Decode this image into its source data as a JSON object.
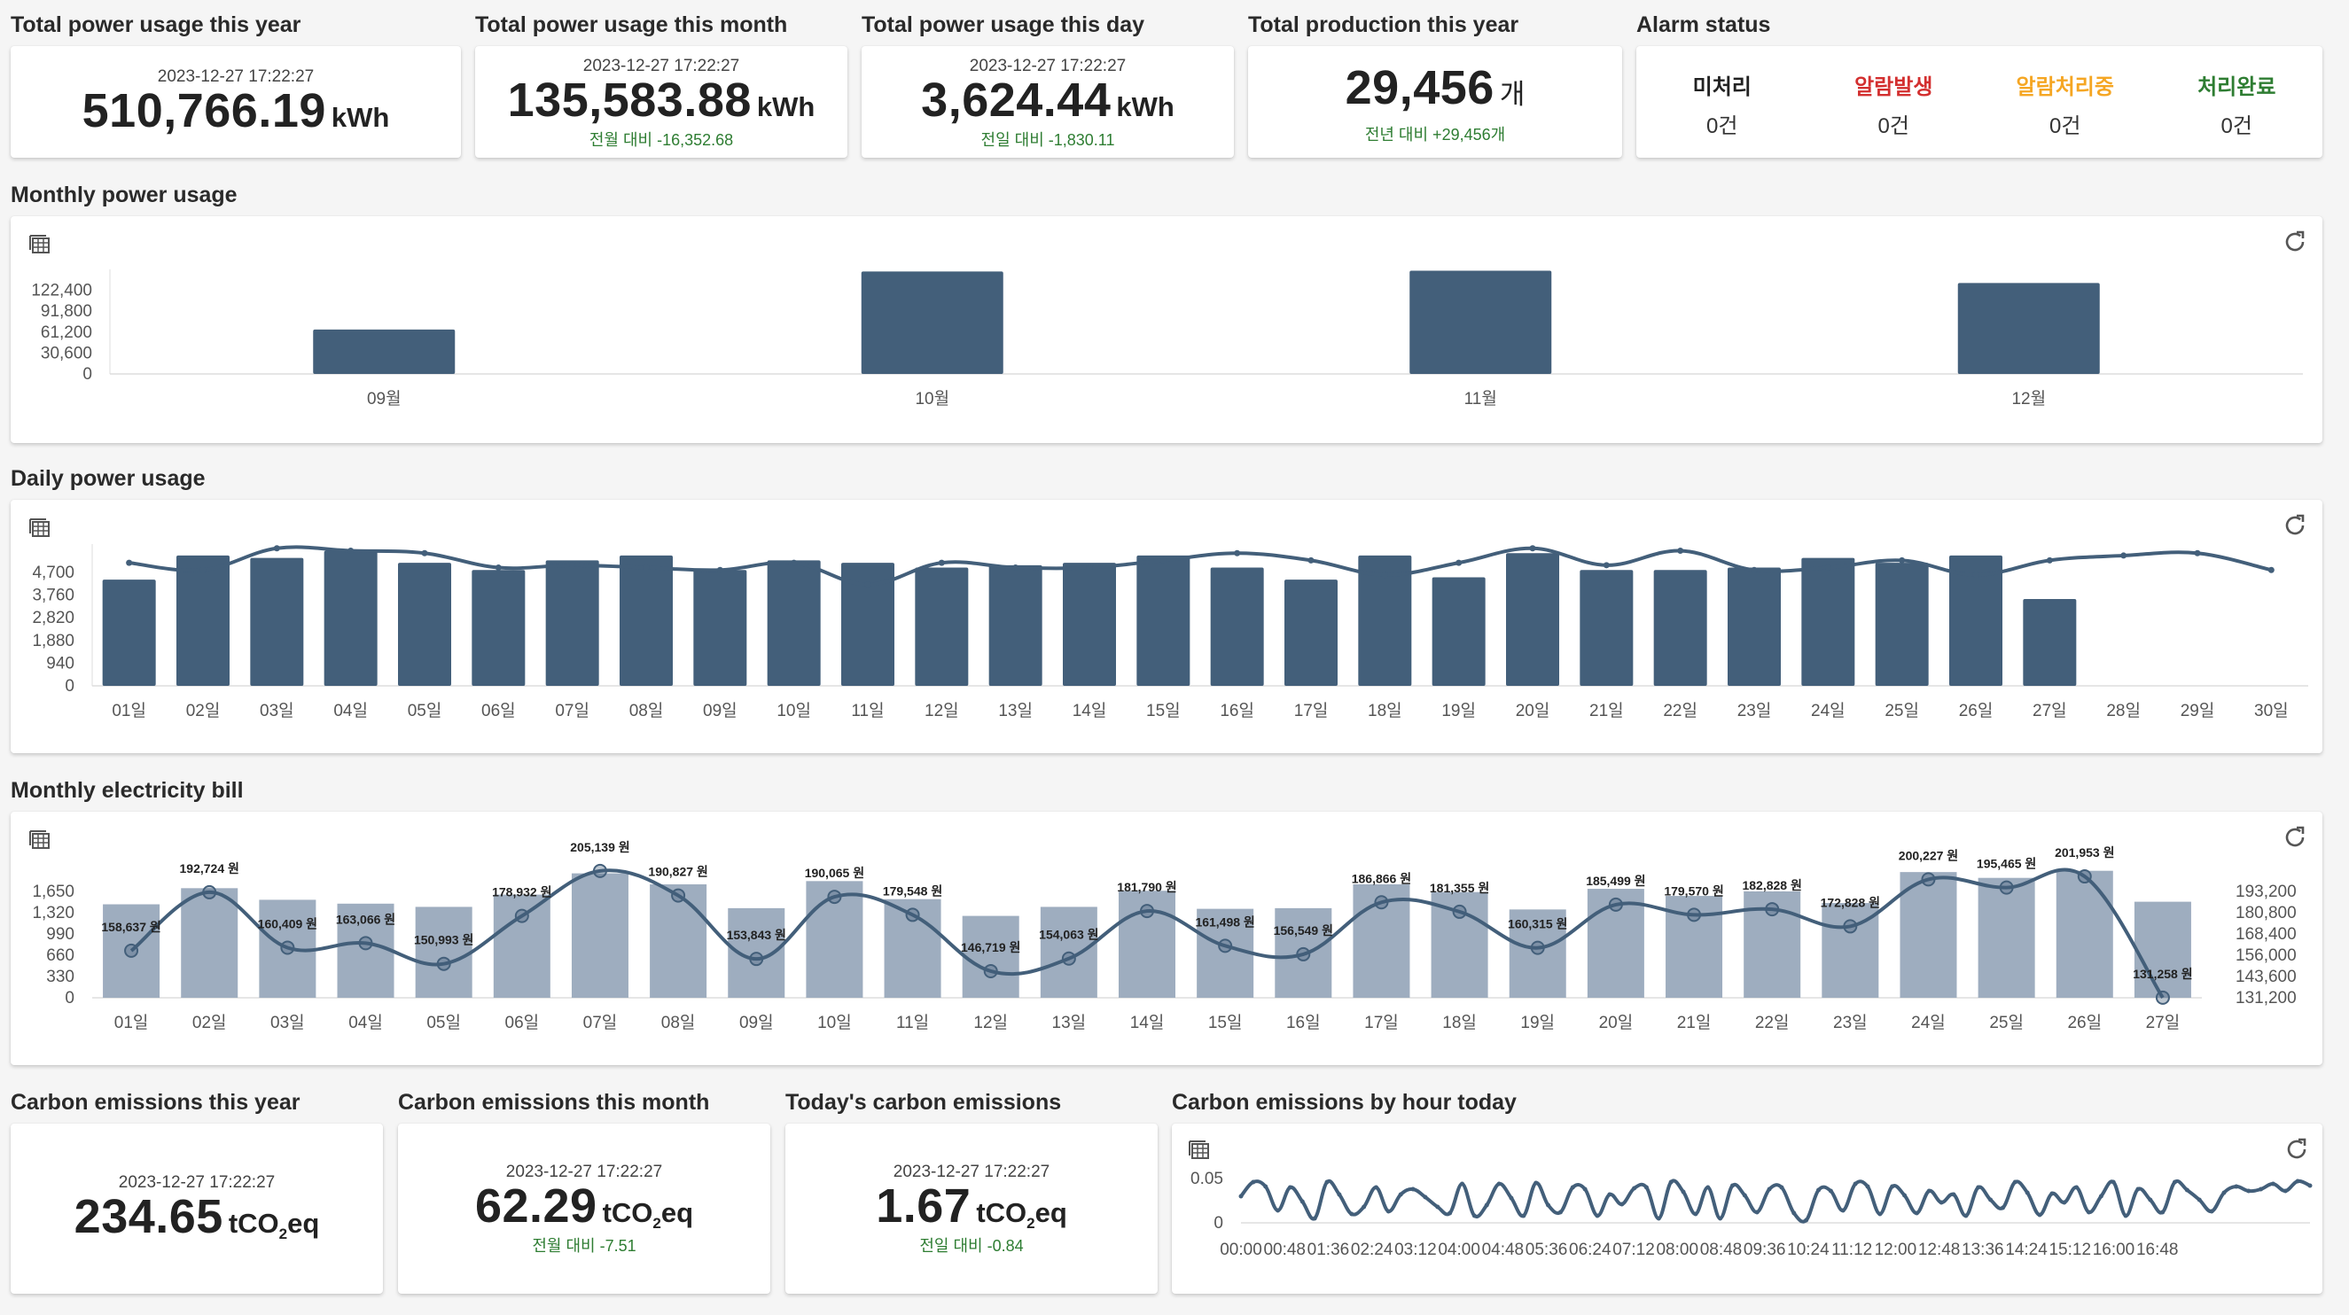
{
  "kpis": {
    "year": {
      "title": "Total power usage this year",
      "timestamp": "2023-12-27 17:22:27",
      "value": "510,766.19",
      "unit": "kWh"
    },
    "month": {
      "title": "Total power usage this month",
      "timestamp": "2023-12-27 17:22:27",
      "value": "135,583.88",
      "unit": "kWh",
      "diff": "전월 대비 -16,352.68"
    },
    "day": {
      "title": "Total power usage this day",
      "timestamp": "2023-12-27 17:22:27",
      "value": "3,624.44",
      "unit": "kWh",
      "diff": "전일 대비 -1,830.11"
    },
    "production": {
      "title": "Total production this year",
      "value": "29,456",
      "unit": "개",
      "diff": "전년 대비 +29,456개"
    }
  },
  "alarm": {
    "title": "Alarm status",
    "items": [
      {
        "label": "미처리",
        "count": "0건",
        "color": "#222222"
      },
      {
        "label": "알람발생",
        "count": "0건",
        "color": "#d32f2f"
      },
      {
        "label": "알람처리중",
        "count": "0건",
        "color": "#f5a623"
      },
      {
        "label": "처리완료",
        "count": "0건",
        "color": "#2e7d32"
      }
    ]
  },
  "monthly_usage": {
    "title": "Monthly power usage",
    "chart_data": {
      "type": "bar",
      "categories": [
        "09월",
        "10월",
        "11월",
        "12월"
      ],
      "values": [
        65000,
        150000,
        151000,
        133000
      ],
      "yticks": [
        "122,400",
        "91,800",
        "61,200",
        "30,600",
        "0"
      ],
      "ylim": [
        0,
        153000
      ],
      "color": "#435f7a"
    }
  },
  "daily_usage": {
    "title": "Daily power usage",
    "chart_data": {
      "type": "bar",
      "categories": [
        "01일",
        "02일",
        "03일",
        "04일",
        "05일",
        "06일",
        "07일",
        "08일",
        "09일",
        "10일",
        "11일",
        "12일",
        "13일",
        "14일",
        "15일",
        "16일",
        "17일",
        "18일",
        "19일",
        "20일",
        "21일",
        "22일",
        "23일",
        "24일",
        "25일",
        "26일",
        "27일",
        "28일",
        "29일",
        "30일"
      ],
      "values": [
        4400,
        5400,
        5300,
        5600,
        5100,
        4800,
        5200,
        5400,
        4800,
        5200,
        5100,
        4900,
        5000,
        5100,
        5400,
        4900,
        4400,
        5400,
        4500,
        5500,
        4800,
        4800,
        4900,
        5300,
        5100,
        5400,
        3600,
        null,
        null,
        null
      ],
      "line_values": [
        5100,
        4800,
        5700,
        5600,
        5500,
        4900,
        5000,
        4900,
        4800,
        5100,
        4200,
        5100,
        4900,
        4900,
        5200,
        5500,
        5200,
        4600,
        5100,
        5700,
        5000,
        5600,
        4800,
        4900,
        5200,
        4600,
        5200,
        5400,
        5500,
        4800
      ],
      "yticks": [
        "4,700",
        "3,760",
        "2,820",
        "1,880",
        "940",
        "0"
      ],
      "ylim": [
        0,
        5875
      ],
      "bar_color": "#435f7a",
      "line_color": "#435f7a"
    }
  },
  "monthly_bill": {
    "title": "Monthly electricity bill",
    "chart_data": {
      "type": "bar",
      "categories": [
        "01일",
        "02일",
        "03일",
        "04일",
        "05일",
        "06일",
        "07일",
        "08일",
        "09일",
        "10일",
        "11일",
        "12일",
        "13일",
        "14일",
        "15일",
        "16일",
        "17일",
        "18일",
        "19일",
        "20일",
        "21일",
        "22일",
        "23일",
        "24일",
        "25일",
        "26일",
        "27일"
      ],
      "values": [
        1450,
        1700,
        1520,
        1460,
        1410,
        1600,
        1930,
        1760,
        1390,
        1810,
        1530,
        1270,
        1410,
        1660,
        1380,
        1390,
        1760,
        1640,
        1370,
        1690,
        1580,
        1650,
        1470,
        1950,
        1860,
        1970,
        1490
      ],
      "line_labels": [
        "158,637 원",
        "192,724 원",
        "160,409 원",
        "163,066 원",
        "150,993 원",
        "178,932 원",
        "205,139 원",
        "190,827 원",
        "153,843 원",
        "190,065 원",
        "179,548 원",
        "146,719 원",
        "154,063 원",
        "181,790 원",
        "161,498 원",
        "156,549 원",
        "186,866 원",
        "181,355 원",
        "160,315 원",
        "185,499 원",
        "179,570 원",
        "182,828 원",
        "172,828 원",
        "200,227 원",
        "195,465 원",
        "201,953 원",
        "131,258 원"
      ],
      "line_values": [
        158637,
        192724,
        160409,
        163066,
        150993,
        178932,
        205139,
        190827,
        153843,
        190065,
        179548,
        146719,
        154063,
        181790,
        161498,
        156549,
        186866,
        181355,
        160315,
        185499,
        179570,
        182828,
        172828,
        200227,
        195465,
        201953,
        131258
      ],
      "yticks_left": [
        "1,650",
        "1,320",
        "990",
        "660",
        "330",
        "0"
      ],
      "ylim_left": [
        0,
        2062
      ],
      "yticks_right": [
        "193,200",
        "180,800",
        "168,400",
        "156,000",
        "143,600",
        "131,200"
      ],
      "ylim_right": [
        131200,
        208700
      ],
      "bar_color": "#9eadbf",
      "line_color": "#435f7a"
    }
  },
  "carbon": {
    "year": {
      "title": "Carbon emissions this year",
      "timestamp": "2023-12-27 17:22:27",
      "value": "234.65",
      "unit_pre": "tCO",
      "unit_sub": "2",
      "unit_post": "eq"
    },
    "month": {
      "title": "Carbon emissions this month",
      "timestamp": "2023-12-27 17:22:27",
      "value": "62.29",
      "unit_pre": "tCO",
      "unit_sub": "2",
      "unit_post": "eq",
      "diff": "전월 대비 -7.51"
    },
    "today": {
      "title": "Today's carbon emissions",
      "timestamp": "2023-12-27 17:22:27",
      "value": "1.67",
      "unit_pre": "tCO",
      "unit_sub": "2",
      "unit_post": "eq",
      "diff": "전일 대비 -0.84"
    }
  },
  "carbon_hourly": {
    "title": "Carbon emissions by hour today",
    "chart_data": {
      "type": "line",
      "x_ticks": [
        "00:00",
        "00:48",
        "01:36",
        "02:24",
        "03:12",
        "04:00",
        "04:48",
        "05:36",
        "06:24",
        "07:12",
        "08:00",
        "08:48",
        "09:36",
        "10:24",
        "11:12",
        "12:00",
        "12:48",
        "13:36",
        "14:24",
        "15:12",
        "16:00",
        "16:48"
      ],
      "values": [
        0.03,
        0.046,
        0.041,
        0.014,
        0.04,
        0.024,
        0.005,
        0.046,
        0.032,
        0.01,
        0.018,
        0.04,
        0.013,
        0.032,
        0.038,
        0.029,
        0.018,
        0.011,
        0.044,
        0.008,
        0.02,
        0.044,
        0.028,
        0.008,
        0.045,
        0.02,
        0.012,
        0.04,
        0.038,
        0.008,
        0.032,
        0.021,
        0.039,
        0.04,
        0.005,
        0.046,
        0.035,
        0.01,
        0.04,
        0.005,
        0.042,
        0.031,
        0.012,
        0.038,
        0.04,
        0.011,
        0.003,
        0.037,
        0.036,
        0.014,
        0.044,
        0.041,
        0.01,
        0.041,
        0.031,
        0.011,
        0.036,
        0.023,
        0.032,
        0.008,
        0.04,
        0.026,
        0.017,
        0.046,
        0.034,
        0.009,
        0.033,
        0.023,
        0.04,
        0.012,
        0.03,
        0.046,
        0.008,
        0.038,
        0.026,
        0.012,
        0.046,
        0.037,
        0.026,
        0.013,
        0.034,
        0.041,
        0.036,
        0.038,
        0.044,
        0.036,
        0.047,
        0.042
      ],
      "yticks": [
        "0.05",
        "0"
      ],
      "ylim": [
        0,
        0.05
      ],
      "color": "#435f7a"
    }
  }
}
